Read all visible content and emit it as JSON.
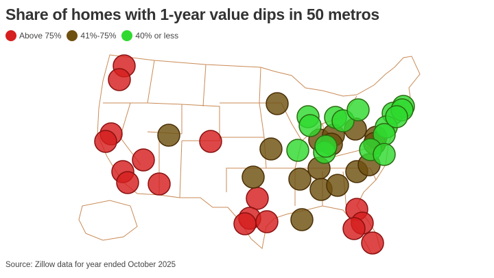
{
  "title": "Share of homes with 1-year value dips in 50 metros",
  "legend": [
    {
      "label": "Above 75%",
      "color": "#d61f1f",
      "border": "#8a1010"
    },
    {
      "label": "41%-75%",
      "color": "#6e5010",
      "border": "#4a2f05"
    },
    {
      "label": "40% or less",
      "color": "#2fd92f",
      "border": "#2a6a10"
    }
  ],
  "map_stroke_color": "#c98a55",
  "markers": [
    "0",
    "0",
    "0",
    "0",
    "0",
    "0",
    "0",
    "0",
    "0",
    "0",
    "0",
    "0",
    "0",
    "0",
    "0",
    "0",
    "0",
    "1",
    "1",
    "1",
    "1",
    "1",
    "1",
    "1",
    "1",
    "1",
    "1",
    "1",
    "1",
    "1",
    "1",
    "1",
    "1",
    "1",
    "2",
    "2",
    "2",
    "2",
    "2",
    "2",
    "2",
    "2",
    "2",
    "2",
    "2",
    "2",
    "2",
    "2",
    "2",
    "2"
  ],
  "source": "Source: Zillow data for year ended October 2025"
}
